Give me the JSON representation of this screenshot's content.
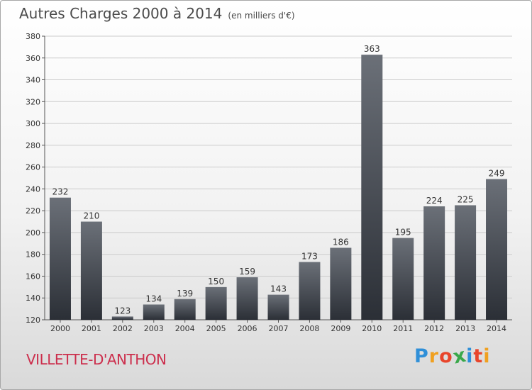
{
  "header": {
    "title": "Autres Charges 2000 à 2014",
    "subtitle": "(en milliers d'€)"
  },
  "footer": {
    "city": "VILLETTE-D'ANTHON"
  },
  "logo": {
    "letters": [
      "P",
      "r",
      "o",
      "x",
      "i",
      "t",
      "i"
    ],
    "colors": [
      "#2f8fd8",
      "#f0a020",
      "#e8452b",
      "#3aa84a",
      "#2f8fd8",
      "#e8452b",
      "#f0a020"
    ]
  },
  "colors": {
    "bar_top": "#6b7078",
    "bar_bottom": "#2b2f36",
    "grid": "#cccccc",
    "axis_text": "#333333",
    "city_text": "#cc2f4d"
  },
  "chart_data": {
    "type": "bar",
    "title": "Autres Charges 2000 à 2014",
    "subtitle": "(en milliers d'€)",
    "categories": [
      "2000",
      "2001",
      "2002",
      "2003",
      "2004",
      "2005",
      "2006",
      "2007",
      "2008",
      "2009",
      "2010",
      "2011",
      "2012",
      "2013",
      "2014"
    ],
    "values": [
      232,
      210,
      123,
      134,
      139,
      150,
      159,
      143,
      173,
      186,
      363,
      195,
      224,
      225,
      249
    ],
    "ylim": [
      120,
      380
    ],
    "yticks": [
      120,
      140,
      160,
      180,
      200,
      220,
      240,
      260,
      280,
      300,
      320,
      340,
      360,
      380
    ],
    "grid": true,
    "data_labels": true
  }
}
